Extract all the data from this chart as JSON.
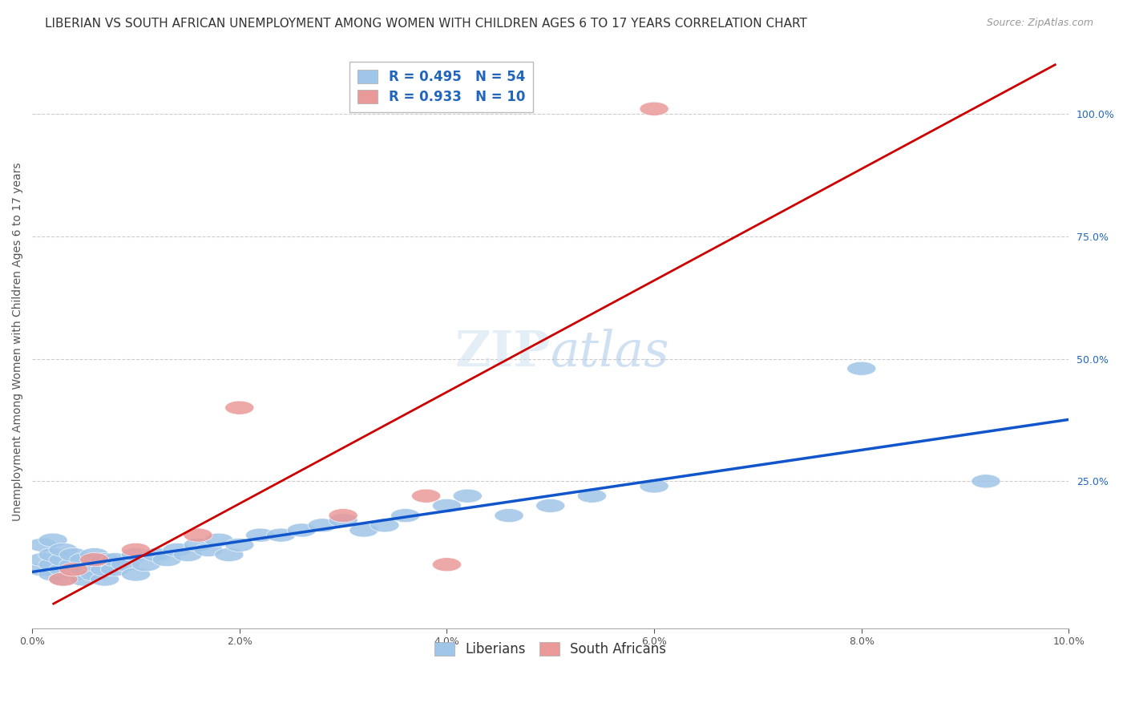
{
  "title": "LIBERIAN VS SOUTH AFRICAN UNEMPLOYMENT AMONG WOMEN WITH CHILDREN AGES 6 TO 17 YEARS CORRELATION CHART",
  "source": "Source: ZipAtlas.com",
  "ylabel": "Unemployment Among Women with Children Ages 6 to 17 years",
  "xlim": [
    0.0,
    0.1
  ],
  "ylim": [
    -0.05,
    1.12
  ],
  "xtick_labels": [
    "0.0%",
    "2.0%",
    "4.0%",
    "6.0%",
    "8.0%",
    "10.0%"
  ],
  "xtick_vals": [
    0.0,
    0.02,
    0.04,
    0.06,
    0.08,
    0.1
  ],
  "right_ytick_labels": [
    "25.0%",
    "50.0%",
    "75.0%",
    "100.0%"
  ],
  "right_ytick_vals": [
    0.25,
    0.5,
    0.75,
    1.0
  ],
  "liberian_color": "#9fc5e8",
  "sa_color": "#ea9999",
  "liberian_trend_color": "#1155cc",
  "sa_trend_color": "#cc0000",
  "liberian_R": 0.495,
  "liberian_N": 54,
  "sa_R": 0.933,
  "sa_N": 10,
  "liberian_x": [
    0.001,
    0.001,
    0.001,
    0.002,
    0.002,
    0.002,
    0.002,
    0.003,
    0.003,
    0.003,
    0.003,
    0.004,
    0.004,
    0.004,
    0.005,
    0.005,
    0.005,
    0.006,
    0.006,
    0.006,
    0.007,
    0.007,
    0.007,
    0.008,
    0.008,
    0.009,
    0.01,
    0.01,
    0.011,
    0.012,
    0.013,
    0.014,
    0.015,
    0.016,
    0.017,
    0.018,
    0.019,
    0.02,
    0.022,
    0.024,
    0.026,
    0.028,
    0.03,
    0.032,
    0.034,
    0.036,
    0.04,
    0.042,
    0.046,
    0.05,
    0.054,
    0.06,
    0.08,
    0.092
  ],
  "liberian_y": [
    0.07,
    0.09,
    0.12,
    0.06,
    0.08,
    0.1,
    0.13,
    0.05,
    0.07,
    0.09,
    0.11,
    0.06,
    0.08,
    0.1,
    0.05,
    0.07,
    0.09,
    0.06,
    0.08,
    0.1,
    0.05,
    0.07,
    0.09,
    0.07,
    0.09,
    0.08,
    0.06,
    0.1,
    0.08,
    0.1,
    0.09,
    0.11,
    0.1,
    0.12,
    0.11,
    0.13,
    0.1,
    0.12,
    0.14,
    0.14,
    0.15,
    0.16,
    0.17,
    0.15,
    0.16,
    0.18,
    0.2,
    0.22,
    0.18,
    0.2,
    0.22,
    0.24,
    0.48,
    0.25
  ],
  "sa_x": [
    0.003,
    0.004,
    0.006,
    0.01,
    0.016,
    0.02,
    0.03,
    0.038,
    0.04,
    0.06
  ],
  "sa_y": [
    0.05,
    0.07,
    0.09,
    0.11,
    0.14,
    0.4,
    0.18,
    0.22,
    0.08,
    1.01
  ],
  "background_color": "#ffffff",
  "grid_color": "#cccccc",
  "title_fontsize": 11,
  "axis_label_fontsize": 10,
  "tick_fontsize": 9,
  "legend_fontsize": 12
}
